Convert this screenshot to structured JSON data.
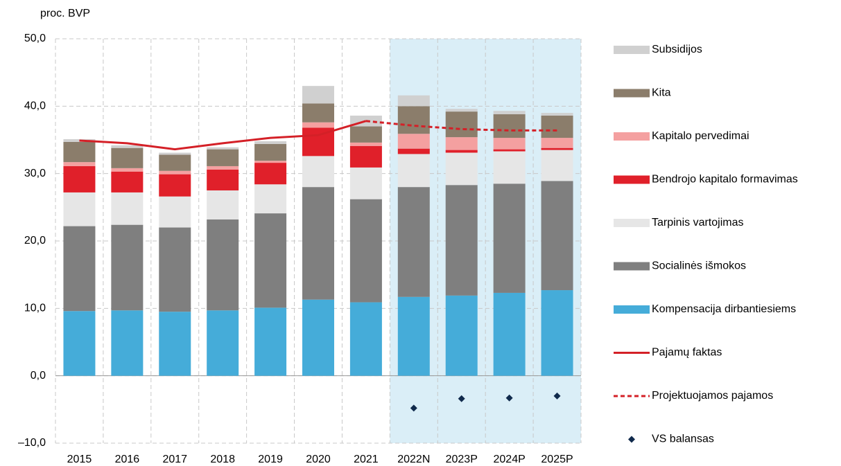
{
  "chart_data": {
    "type": "bar",
    "stacked": true,
    "y_axis_label": "proc. BVP",
    "categories": [
      "2015",
      "2016",
      "2017",
      "2018",
      "2019",
      "2020",
      "2021",
      "2022N",
      "2023P",
      "2024P",
      "2025P"
    ],
    "ylim": [
      -10,
      50
    ],
    "yticks": [
      {
        "value": -10,
        "label": "–10,0"
      },
      {
        "value": 0,
        "label": "0,0"
      },
      {
        "value": 10,
        "label": "10,0"
      },
      {
        "value": 20,
        "label": "20,0"
      },
      {
        "value": 30,
        "label": "30,0"
      },
      {
        "value": 40,
        "label": "40,0"
      },
      {
        "value": 50,
        "label": "50,0"
      }
    ],
    "grid": true,
    "legend": "right",
    "series": [
      {
        "name": "Subsidijos",
        "type": "bar",
        "color": "#d0d0d0",
        "values": [
          0.4,
          0.4,
          0.3,
          0.3,
          0.4,
          2.6,
          1.6,
          1.6,
          0.4,
          0.5,
          0.4
        ]
      },
      {
        "name": "Kita",
        "type": "bar",
        "color": "#8b7d6b",
        "values": [
          3.0,
          3.0,
          2.4,
          2.5,
          2.5,
          2.8,
          2.4,
          4.1,
          3.8,
          3.5,
          3.3
        ]
      },
      {
        "name": "Kapitalo pervedimai",
        "type": "bar",
        "color": "#f4a0a0",
        "values": [
          0.6,
          0.5,
          0.5,
          0.5,
          0.3,
          0.8,
          0.5,
          2.2,
          1.9,
          1.7,
          1.5
        ]
      },
      {
        "name": "Bendrojo kapitalo formavimas",
        "type": "bar",
        "color": "#e0202a",
        "values": [
          3.9,
          3.1,
          3.3,
          3.1,
          3.2,
          4.2,
          3.2,
          0.8,
          0.4,
          0.3,
          0.3
        ]
      },
      {
        "name": "Tarpinis vartojimas",
        "type": "bar",
        "color": "#e6e6e6",
        "values": [
          5.0,
          4.8,
          4.6,
          4.3,
          4.3,
          4.6,
          4.7,
          4.9,
          4.8,
          4.8,
          4.6
        ]
      },
      {
        "name": "Socialinės išmokos",
        "type": "bar",
        "color": "#7f7f7f",
        "values": [
          12.6,
          12.7,
          12.5,
          13.5,
          14.0,
          16.7,
          15.3,
          16.3,
          16.4,
          16.2,
          16.2
        ]
      },
      {
        "name": "Kompensacija dirbantiesiems",
        "type": "bar",
        "color": "#45acd9",
        "values": [
          9.6,
          9.7,
          9.5,
          9.7,
          10.1,
          11.3,
          10.9,
          11.7,
          11.9,
          12.3,
          12.7
        ]
      },
      {
        "name": "Pajamų faktas",
        "type": "line",
        "color": "#d42027",
        "values": [
          34.9,
          34.5,
          33.6,
          34.5,
          35.3,
          35.7,
          37.8,
          null,
          null,
          null,
          null
        ]
      },
      {
        "name": "Projektuojamos pajamos",
        "type": "line",
        "dashed": true,
        "color": "#d42027",
        "values": [
          null,
          null,
          null,
          null,
          null,
          null,
          37.8,
          37.1,
          36.6,
          36.4,
          36.4
        ]
      },
      {
        "name": "VS balansas",
        "type": "scatter",
        "color": "#102a4c",
        "values": [
          null,
          null,
          null,
          null,
          null,
          null,
          null,
          -4.8,
          -3.4,
          -3.3,
          -3.0
        ]
      }
    ]
  }
}
